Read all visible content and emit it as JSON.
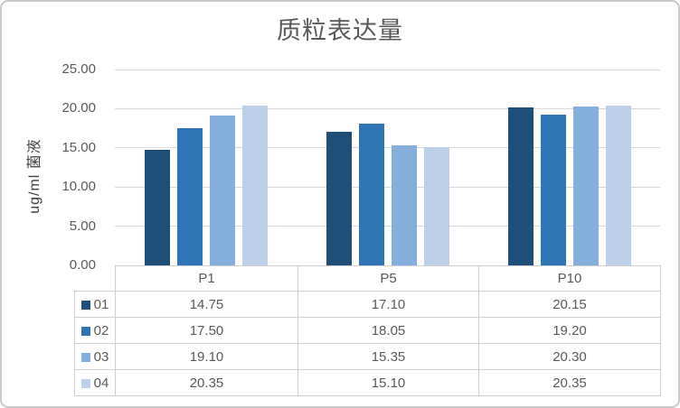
{
  "chart_data": {
    "type": "bar",
    "title": "质粒表达量",
    "ylabel": "ug/ml 菌液",
    "xlabel": "",
    "categories": [
      "P1",
      "P5",
      "P10"
    ],
    "series": [
      {
        "name": "01",
        "color": "#1F4E79",
        "values": [
          14.75,
          17.1,
          20.15
        ]
      },
      {
        "name": "02",
        "color": "#2E75B6",
        "values": [
          17.5,
          18.05,
          19.2
        ]
      },
      {
        "name": "03",
        "color": "#84AEDC",
        "values": [
          19.1,
          15.35,
          20.3
        ]
      },
      {
        "name": "04",
        "color": "#BDD0E9",
        "values": [
          20.35,
          15.1,
          20.35
        ]
      }
    ],
    "ylim": [
      0,
      25
    ],
    "ytick_values": [
      0,
      5,
      10,
      15,
      20,
      25
    ],
    "ytick_labels": [
      "0.00",
      "5.00",
      "10.00",
      "15.00",
      "20.00",
      "25.00"
    ],
    "grid": true,
    "legend_position": "data-table-left-column",
    "data_table_shown": true,
    "value_format": "0.00"
  },
  "colors": {
    "text": "#595959",
    "gridline": "#D9D9D9",
    "table_border": "#D0CECE",
    "outer_border": "#C9C9C9",
    "background": "#FFFFFF"
  }
}
